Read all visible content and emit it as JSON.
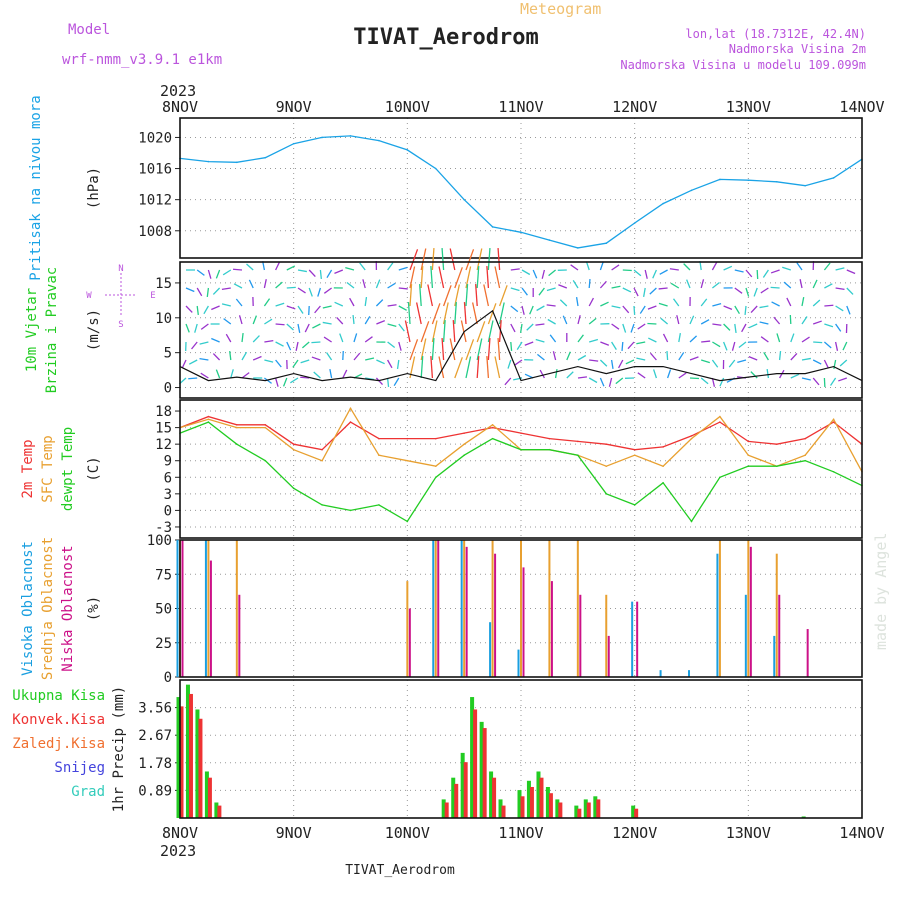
{
  "header": {
    "model_label": "Model",
    "model_name": "wrf-nmm_v3.9.1 e1km",
    "meteogram_label": "Meteogram",
    "station_title": "TIVAT_Aerodrom",
    "lonlat": "lon,lat (18.7312E, 42.4N)",
    "altitude": "Nadmorska Visina 2m",
    "model_altitude": "Nadmorska Visina u modelu 109.099m"
  },
  "footer": {
    "station": "TIVAT_Aerodrom",
    "credit": "made by Angel"
  },
  "colors": {
    "pressure": "#1aa3e6",
    "wind_label": "#22cc22",
    "temp2m": "#ee3333",
    "sfc_temp": "#e8a030",
    "dewpoint": "#22cc22",
    "high_cloud": "#1a9fe0",
    "mid_cloud": "#e8a030",
    "low_cloud": "#cc1188",
    "precip_total": "#22cc22",
    "precip_conv": "#ee3333",
    "frozen": "#f07030",
    "snow": "#4444dd",
    "graupel": "#33ccbb",
    "header_purple": "#bb55dd",
    "meteogram_orange": "#f0c070"
  },
  "time_axis": {
    "year": "2023",
    "ticks": [
      "8NOV",
      "9NOV",
      "10NOV",
      "11NOV",
      "12NOV",
      "13NOV",
      "14NOV"
    ]
  },
  "wind_compass": {
    "n": "N",
    "s": "S",
    "e": "E",
    "w": "W"
  },
  "chart_data": [
    {
      "type": "line",
      "panel": "pressure",
      "ylabel_lines": [
        "Pritisak na nivou mora"
      ],
      "unit": "(hPa)",
      "yticks": [
        "1008",
        "1012",
        "1016",
        "1020"
      ],
      "ylim": [
        1004.5,
        1022.5
      ],
      "x": [
        0,
        0.25,
        0.5,
        0.75,
        1,
        1.25,
        1.5,
        1.75,
        2,
        2.25,
        2.5,
        2.75,
        3,
        3.25,
        3.5,
        3.75,
        4,
        4.25,
        4.5,
        4.75,
        5,
        5.25,
        5.5,
        5.75,
        6
      ],
      "series": [
        {
          "name": "Pritisak na nivou mora",
          "values": [
            1017.3,
            1016.9,
            1016.8,
            1017.4,
            1019.2,
            1020.0,
            1020.2,
            1019.6,
            1018.4,
            1016.0,
            1012.0,
            1008.5,
            1007.8,
            1006.8,
            1005.8,
            1006.4,
            1009.0,
            1011.5,
            1013.2,
            1014.6,
            1014.5,
            1014.3,
            1013.8,
            1014.8,
            1017.2
          ]
        }
      ]
    },
    {
      "type": "line",
      "panel": "wind",
      "ylabel_lines": [
        "10m Vjetar",
        "Brzina i Pravac"
      ],
      "unit": "(m/s)",
      "yticks": [
        "0",
        "5",
        "10",
        "15"
      ],
      "ylim": [
        -1.5,
        18
      ],
      "x": [
        0,
        0.25,
        0.5,
        0.75,
        1,
        1.25,
        1.5,
        1.75,
        2,
        2.25,
        2.5,
        2.75,
        3,
        3.25,
        3.5,
        3.75,
        4,
        4.25,
        4.5,
        4.75,
        5,
        5.25,
        5.5,
        5.75,
        6
      ],
      "series": [
        {
          "name": "Brzina",
          "values": [
            3,
            1,
            1.5,
            1,
            2,
            1,
            1.5,
            1,
            2,
            1,
            8,
            11,
            1,
            2,
            3,
            2,
            3,
            3,
            2,
            1,
            1.5,
            2,
            2,
            3,
            1
          ]
        }
      ]
    },
    {
      "type": "line",
      "panel": "temperature",
      "ylabel_lines": [
        "2m Temp",
        "SFC Temp",
        "dewpt Temp"
      ],
      "unit": "(C)",
      "yticks": [
        "-3",
        "0",
        "3",
        "6",
        "9",
        "12",
        "15",
        "18"
      ],
      "ylim": [
        -5,
        20
      ],
      "x": [
        0,
        0.25,
        0.5,
        0.75,
        1,
        1.25,
        1.5,
        1.75,
        2,
        2.25,
        2.5,
        2.75,
        3,
        3.25,
        3.5,
        3.75,
        4,
        4.25,
        4.5,
        4.75,
        5,
        5.25,
        5.5,
        5.75,
        6
      ],
      "series": [
        {
          "name": "2m Temp",
          "values": [
            15,
            17,
            15.5,
            15.5,
            12,
            11,
            16,
            13,
            13,
            13,
            14,
            15,
            14,
            13,
            12.5,
            12,
            11,
            11.5,
            13.5,
            16,
            12.5,
            12,
            13,
            16,
            12
          ]
        },
        {
          "name": "SFC Temp",
          "values": [
            15,
            16.5,
            15,
            15,
            11,
            9,
            18.5,
            10,
            9,
            8,
            12,
            15.5,
            11,
            11,
            10,
            8,
            10,
            8,
            13,
            17,
            10,
            8,
            10,
            16.5,
            7
          ]
        },
        {
          "name": "dewpt Temp",
          "values": [
            14,
            16,
            12,
            9,
            4,
            1,
            0,
            1,
            -2,
            6,
            10,
            13,
            11,
            11,
            10,
            3,
            1,
            5,
            -2,
            6,
            8,
            8,
            9,
            7,
            4.5
          ]
        }
      ]
    },
    {
      "type": "bar",
      "panel": "clouds",
      "ylabel_lines": [
        "Visoka Oblacnost",
        "Srednja Oblacnost",
        "Niska Oblacnost"
      ],
      "unit": "(%)",
      "yticks": [
        "0",
        "25",
        "50",
        "75",
        "100"
      ],
      "ylim": [
        0,
        100
      ],
      "x": [
        0,
        0.25,
        0.5,
        0.75,
        1,
        1.25,
        1.5,
        1.75,
        2,
        2.25,
        2.5,
        2.75,
        3,
        3.25,
        3.5,
        3.75,
        4,
        4.25,
        4.5,
        4.75,
        5,
        5.25,
        5.5,
        5.75,
        6
      ],
      "series": [
        {
          "name": "Visoka Oblacnost",
          "values": [
            100,
            100,
            0,
            0,
            0,
            0,
            0,
            0,
            0,
            100,
            100,
            40,
            20,
            0,
            0,
            0,
            55,
            5,
            5,
            90,
            60,
            30,
            0,
            0,
            0
          ]
        },
        {
          "name": "Srednja Oblacnost",
          "values": [
            100,
            100,
            100,
            0,
            0,
            0,
            0,
            0,
            70,
            100,
            100,
            100,
            100,
            100,
            100,
            60,
            0,
            0,
            0,
            100,
            100,
            90,
            0,
            0,
            0
          ]
        },
        {
          "name": "Niska Oblacnost",
          "values": [
            100,
            85,
            60,
            0,
            0,
            0,
            0,
            0,
            50,
            100,
            95,
            90,
            80,
            70,
            60,
            30,
            55,
            0,
            0,
            0,
            95,
            60,
            35,
            0,
            0
          ]
        }
      ]
    },
    {
      "type": "bar",
      "panel": "precip",
      "ylabel_lines": [
        "1hr Precip (mm)"
      ],
      "legend": [
        "Ukupna Kisa",
        "Konvek.Kisa",
        "Zaledj.Kisa",
        "Snijeg",
        "Grad"
      ],
      "yticks": [
        "0.89",
        "1.78",
        "2.67",
        "3.56"
      ],
      "ylim": [
        0,
        4.45
      ],
      "x": [
        0,
        0.0833,
        0.1667,
        0.25,
        0.3333,
        2.333,
        2.417,
        2.5,
        2.583,
        2.667,
        2.75,
        2.833,
        3.0,
        3.083,
        3.167,
        3.25,
        3.333,
        3.5,
        3.583,
        3.667,
        4.0,
        4.5,
        5.0,
        5.5
      ],
      "series": [
        {
          "name": "Ukupna Kisa",
          "values": [
            3.9,
            4.3,
            3.5,
            1.5,
            0.5,
            0.6,
            1.3,
            2.1,
            3.9,
            3.1,
            1.5,
            0.6,
            0.9,
            1.2,
            1.5,
            1.0,
            0.6,
            0.4,
            0.6,
            0.7,
            0.4,
            0.0,
            0.0,
            0.05
          ]
        },
        {
          "name": "Konvek.Kisa",
          "values": [
            3.6,
            4.0,
            3.2,
            1.3,
            0.4,
            0.5,
            1.1,
            1.8,
            3.5,
            2.9,
            1.3,
            0.4,
            0.7,
            1.0,
            1.3,
            0.8,
            0.5,
            0.3,
            0.5,
            0.6,
            0.3,
            0.0,
            0.0,
            0.0
          ]
        }
      ]
    }
  ]
}
